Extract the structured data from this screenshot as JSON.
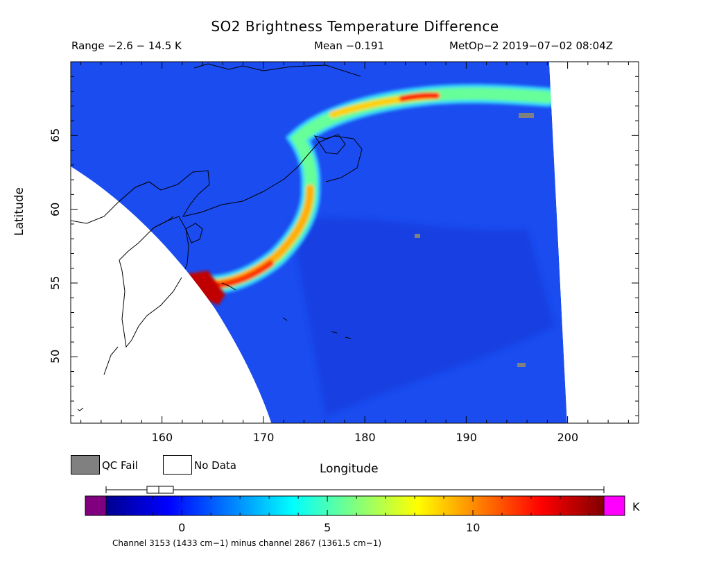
{
  "header": {
    "title": "SO2 Brightness Temperature Difference",
    "range_text": "Range −2.6 − 14.5 K",
    "mean_text": "Mean −0.191",
    "satellite_time": "MetOp−2 2019−07−02 08:04Z"
  },
  "axes": {
    "x_label": "Longitude",
    "y_label": "Latitude",
    "x_ticks": [
      "160",
      "170",
      "180",
      "190",
      "200"
    ],
    "y_ticks": [
      "50",
      "55",
      "60",
      "65"
    ],
    "lon_range": [
      151,
      207
    ],
    "lat_range": [
      45.5,
      70
    ]
  },
  "legend": {
    "qc_fail_label": "QC Fail",
    "no_data_label": "No Data",
    "qc_fail_color": "#808080",
    "no_data_color": "#ffffff"
  },
  "colorbar": {
    "unit": "K",
    "ticks": [
      "0",
      "5",
      "10"
    ],
    "range": [
      -2.6,
      14.5
    ],
    "under_color": "#800080",
    "over_color": "#ff00ff",
    "colormap": "jet"
  },
  "caption": "Channel 3153 (1433 cm−1) minus channel 2867 (1361.5 cm−1)"
}
